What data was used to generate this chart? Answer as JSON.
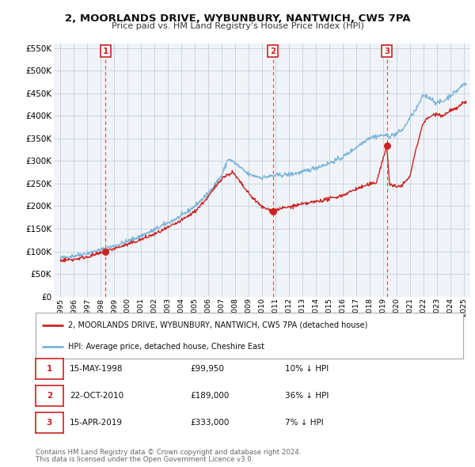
{
  "title": "2, MOORLANDS DRIVE, WYBUNBURY, NANTWICH, CW5 7PA",
  "subtitle": "Price paid vs. HM Land Registry's House Price Index (HPI)",
  "property_label": "2, MOORLANDS DRIVE, WYBUNBURY, NANTWICH, CW5 7PA (detached house)",
  "hpi_label": "HPI: Average price, detached house, Cheshire East",
  "footnote1": "Contains HM Land Registry data © Crown copyright and database right 2024.",
  "footnote2": "This data is licensed under the Open Government Licence v3.0.",
  "sales": [
    {
      "num": 1,
      "date_label": "15-MAY-1998",
      "price_label": "£99,950",
      "hpi_diff": "10% ↓ HPI",
      "year": 1998.37,
      "price": 99950
    },
    {
      "num": 2,
      "date_label": "22-OCT-2010",
      "price_label": "£189,000",
      "hpi_diff": "36% ↓ HPI",
      "year": 2010.81,
      "price": 189000
    },
    {
      "num": 3,
      "date_label": "15-APR-2019",
      "price_label": "£333,000",
      "hpi_diff": "7% ↓ HPI",
      "year": 2019.29,
      "price": 333000
    }
  ],
  "property_color": "#cc2222",
  "hpi_color": "#7ab4d8",
  "sale_marker_color": "#cc2222",
  "vline_color": "#cc2222",
  "background_color": "#ffffff",
  "plot_bg_color": "#f0f4f8",
  "grid_color": "#c8d4e0",
  "ylim": [
    0,
    560000
  ],
  "yticks": [
    0,
    50000,
    100000,
    150000,
    200000,
    250000,
    300000,
    350000,
    400000,
    450000,
    500000,
    550000
  ],
  "xlim_start": 1994.5,
  "xlim_end": 2025.5,
  "xticks": [
    1995,
    1996,
    1997,
    1998,
    1999,
    2000,
    2001,
    2002,
    2003,
    2004,
    2005,
    2006,
    2007,
    2008,
    2009,
    2010,
    2011,
    2012,
    2013,
    2014,
    2015,
    2016,
    2017,
    2018,
    2019,
    2020,
    2021,
    2022,
    2023,
    2024,
    2025
  ]
}
